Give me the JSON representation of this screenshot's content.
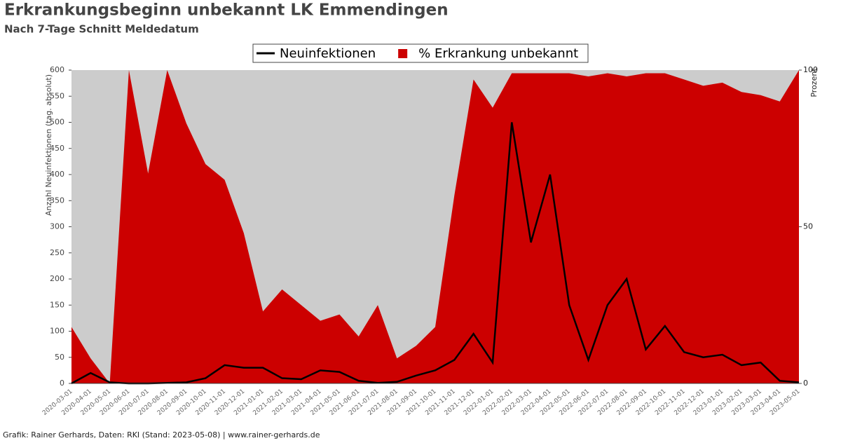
{
  "chart_data": {
    "type": "line",
    "title": "Erkrankungsbeginn unbekannt LK Emmendingen",
    "subtitle": "Nach 7-Tage Schnitt Meldedatum",
    "y_label": "Anzahl Neuinfektionen (tag. absolut)",
    "y2_label": "Prozent",
    "footer": "Grafik: Rainer Gerhards, Daten: RKI (Stand: 2023-05-08) | www.rainer-gerhards.de",
    "categories": [
      "2020-03-01",
      "2020-04-01",
      "2020-05-01",
      "2020-06-01",
      "2020-07-01",
      "2020-08-01",
      "2020-09-01",
      "2020-10-01",
      "2020-11-01",
      "2020-12-01",
      "2021-01-01",
      "2021-02-01",
      "2021-03-01",
      "2021-04-01",
      "2021-05-01",
      "2021-06-01",
      "2021-07-01",
      "2021-08-01",
      "2021-09-01",
      "2021-10-01",
      "2021-11-01",
      "2021-12-01",
      "2022-01-01",
      "2022-02-01",
      "2022-03-01",
      "2022-04-01",
      "2022-05-01",
      "2022-06-01",
      "2022-07-01",
      "2022-08-01",
      "2022-09-01",
      "2022-10-01",
      "2022-11-01",
      "2022-12-01",
      "2023-01-01",
      "2023-02-01",
      "2023-03-01",
      "2023-04-01",
      "2023-05-01"
    ],
    "series": [
      {
        "name": "% Erkrankung unbekannt",
        "color": "#cc0000",
        "axis": "y2",
        "kind": "area",
        "values": [
          18,
          8,
          0,
          100,
          67,
          100,
          83,
          70,
          65,
          48,
          23,
          30,
          25,
          20,
          22,
          15,
          25,
          8,
          12,
          18,
          60,
          97,
          88,
          99,
          99,
          99,
          99,
          98,
          99,
          98,
          99,
          99,
          97,
          95,
          96,
          93,
          92,
          90,
          100
        ]
      },
      {
        "name": "Neuinfektionen",
        "color": "#000000",
        "kind": "line",
        "values": [
          0,
          20,
          2,
          0,
          0,
          1,
          2,
          10,
          35,
          30,
          30,
          10,
          8,
          25,
          22,
          5,
          1,
          3,
          15,
          25,
          45,
          95,
          40,
          500,
          270,
          400,
          150,
          45,
          150,
          200,
          65,
          110,
          60,
          50,
          55,
          35,
          40,
          5,
          2
        ]
      }
    ],
    "ylim": [
      0,
      600
    ],
    "yticks": [
      0,
      50,
      100,
      150,
      200,
      250,
      300,
      350,
      400,
      450,
      500,
      550,
      600
    ],
    "y2lim": [
      0,
      100
    ],
    "y2ticks": [
      0,
      50,
      100
    ],
    "legend": "top"
  }
}
